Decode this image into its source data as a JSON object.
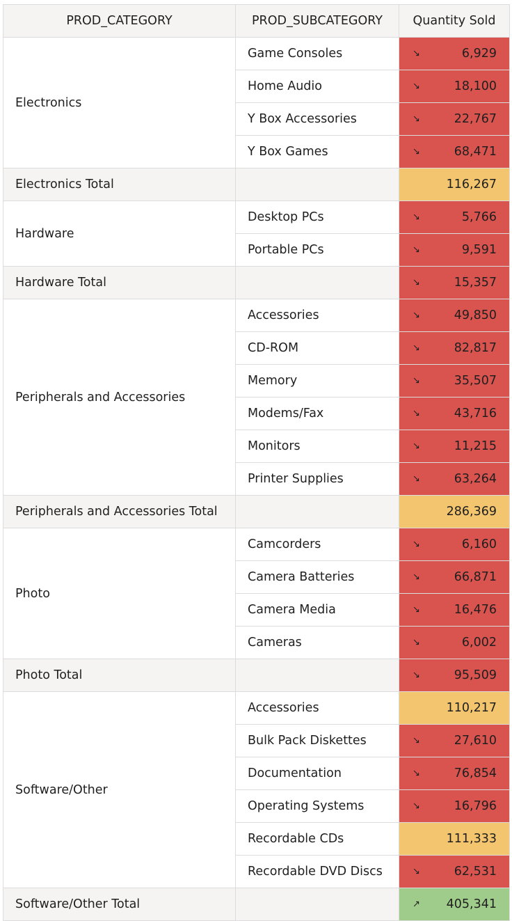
{
  "headers": [
    "PROD_CATEGORY",
    "PROD_SUBCATEGORY",
    "Quantity Sold"
  ],
  "colors": {
    "red": "#d9534f",
    "amber": "#f3c56e",
    "green": "#9fcc8a",
    "header_bg": "#f5f4f2"
  },
  "icons": {
    "down": "trend-down-icon",
    "up": "trend-up-icon"
  },
  "trend_glyphs": {
    "down": "↘",
    "up": "↗"
  },
  "groups": [
    {
      "category": "Electronics",
      "rows": [
        {
          "sub": "Game Consoles",
          "qty": "6,929",
          "color": "red",
          "trend": "down"
        },
        {
          "sub": "Home Audio",
          "qty": "18,100",
          "color": "red",
          "trend": "down"
        },
        {
          "sub": "Y Box Accessories",
          "qty": "22,767",
          "color": "red",
          "trend": "down"
        },
        {
          "sub": "Y Box Games",
          "qty": "68,471",
          "color": "red",
          "trend": "down"
        }
      ],
      "total": {
        "label": "Electronics Total",
        "qty": "116,267",
        "color": "amber",
        "trend": null
      }
    },
    {
      "category": "Hardware",
      "rows": [
        {
          "sub": "Desktop PCs",
          "qty": "5,766",
          "color": "red",
          "trend": "down"
        },
        {
          "sub": "Portable PCs",
          "qty": "9,591",
          "color": "red",
          "trend": "down"
        }
      ],
      "total": {
        "label": "Hardware Total",
        "qty": "15,357",
        "color": "red",
        "trend": "down"
      }
    },
    {
      "category": "Peripherals and Accessories",
      "rows": [
        {
          "sub": "Accessories",
          "qty": "49,850",
          "color": "red",
          "trend": "down"
        },
        {
          "sub": "CD-ROM",
          "qty": "82,817",
          "color": "red",
          "trend": "down"
        },
        {
          "sub": "Memory",
          "qty": "35,507",
          "color": "red",
          "trend": "down"
        },
        {
          "sub": "Modems/Fax",
          "qty": "43,716",
          "color": "red",
          "trend": "down"
        },
        {
          "sub": "Monitors",
          "qty": "11,215",
          "color": "red",
          "trend": "down"
        },
        {
          "sub": "Printer Supplies",
          "qty": "63,264",
          "color": "red",
          "trend": "down"
        }
      ],
      "total": {
        "label": "Peripherals and Accessories Total",
        "qty": "286,369",
        "color": "amber",
        "trend": null
      }
    },
    {
      "category": "Photo",
      "rows": [
        {
          "sub": "Camcorders",
          "qty": "6,160",
          "color": "red",
          "trend": "down"
        },
        {
          "sub": "Camera Batteries",
          "qty": "66,871",
          "color": "red",
          "trend": "down"
        },
        {
          "sub": "Camera Media",
          "qty": "16,476",
          "color": "red",
          "trend": "down"
        },
        {
          "sub": "Cameras",
          "qty": "6,002",
          "color": "red",
          "trend": "down"
        }
      ],
      "total": {
        "label": "Photo Total",
        "qty": "95,509",
        "color": "red",
        "trend": "down"
      }
    },
    {
      "category": "Software/Other",
      "rows": [
        {
          "sub": "Accessories",
          "qty": "110,217",
          "color": "amber",
          "trend": null
        },
        {
          "sub": "Bulk Pack Diskettes",
          "qty": "27,610",
          "color": "red",
          "trend": "down"
        },
        {
          "sub": "Documentation",
          "qty": "76,854",
          "color": "red",
          "trend": "down"
        },
        {
          "sub": "Operating Systems",
          "qty": "16,796",
          "color": "red",
          "trend": "down"
        },
        {
          "sub": "Recordable CDs",
          "qty": "111,333",
          "color": "amber",
          "trend": null
        },
        {
          "sub": "Recordable DVD Discs",
          "qty": "62,531",
          "color": "red",
          "trend": "down"
        }
      ],
      "total": {
        "label": "Software/Other Total",
        "qty": "405,341",
        "color": "green",
        "trend": "up"
      }
    }
  ]
}
